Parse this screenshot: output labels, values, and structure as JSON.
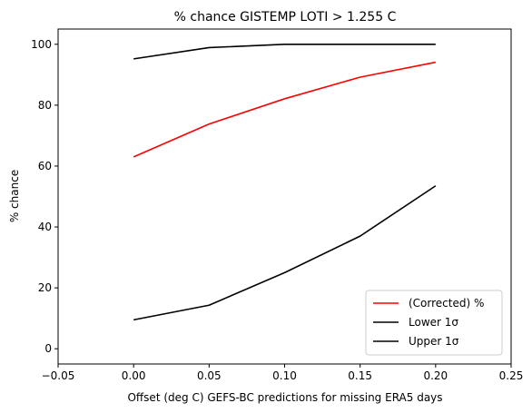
{
  "chart_data": {
    "type": "line",
    "title": "% chance GISTEMP LOTI > 1.255 C",
    "xlabel": "Offset (deg C) GEFS-BC predictions for missing ERA5 days",
    "ylabel": "% chance",
    "xlim": [
      -0.05,
      0.25
    ],
    "ylim": [
      -5,
      105
    ],
    "xticks": [
      -0.05,
      0.0,
      0.05,
      0.1,
      0.15,
      0.2,
      0.25
    ],
    "xtick_labels": [
      "−0.05",
      "0.00",
      "0.05",
      "0.10",
      "0.15",
      "0.20",
      "0.25"
    ],
    "yticks": [
      0,
      20,
      40,
      60,
      80,
      100
    ],
    "ytick_labels": [
      "0",
      "20",
      "40",
      "60",
      "80",
      "100"
    ],
    "grid": false,
    "legend_position": "lower-right",
    "x": [
      0.0,
      0.05,
      0.1,
      0.15,
      0.2
    ],
    "series": [
      {
        "name": "(Corrected) %",
        "color": "#ff0000",
        "values": [
          63.0,
          73.8,
          82.1,
          89.2,
          94.1
        ]
      },
      {
        "name": "Lower 1σ",
        "color": "#000000",
        "values": [
          9.5,
          14.3,
          25.0,
          37.0,
          53.5
        ]
      },
      {
        "name": "Upper 1σ",
        "color": "#000000",
        "values": [
          95.2,
          98.9,
          100.0,
          100.0,
          100.0
        ]
      }
    ]
  }
}
